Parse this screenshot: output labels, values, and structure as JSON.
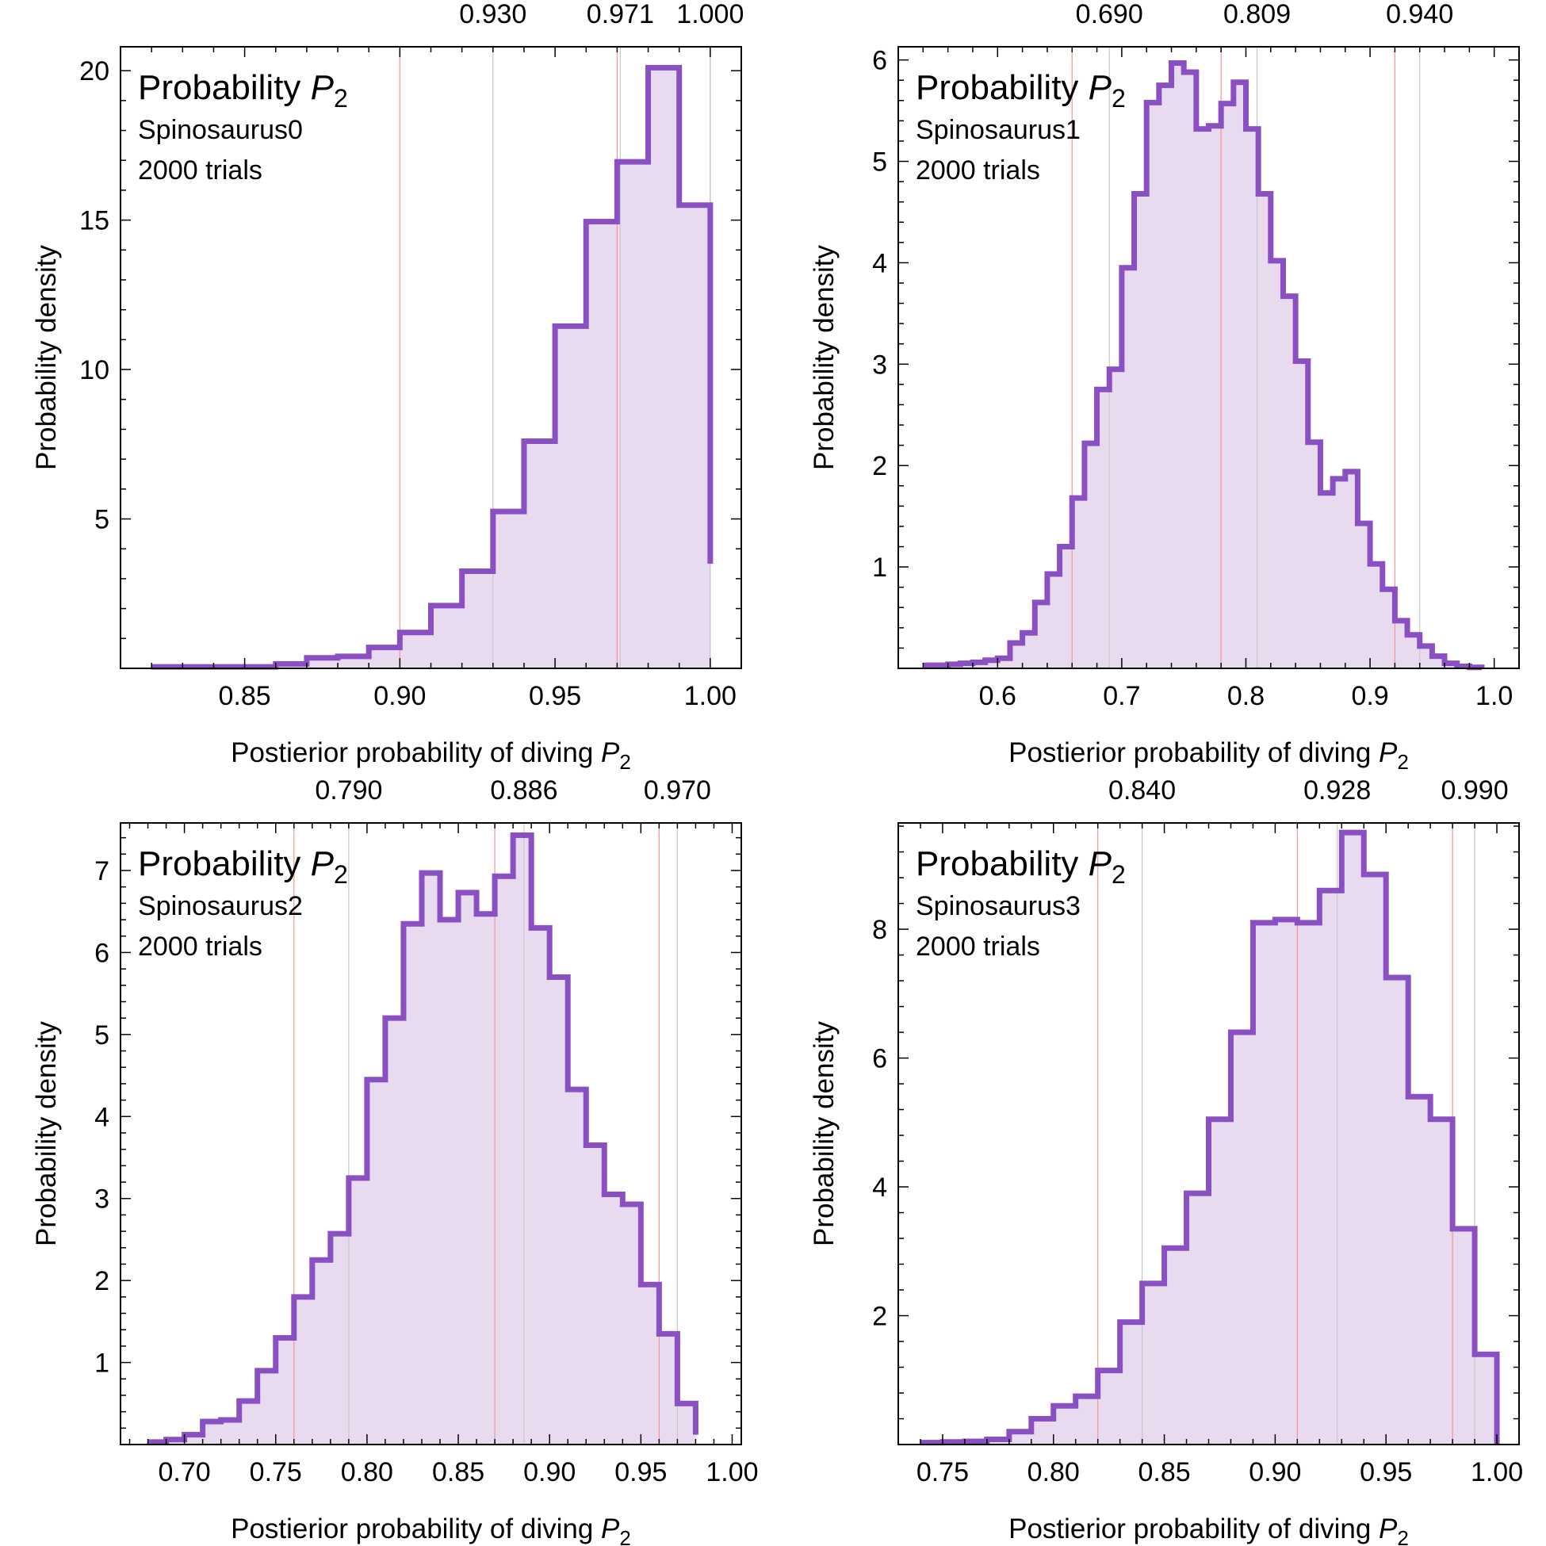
{
  "chart_data": [
    {
      "type": "histogram",
      "title": "Probability",
      "title_var": "P",
      "title_sub": "2",
      "subtitle": "Spinosaurus0",
      "trials_label": "2000 trials",
      "ylabel": "Probability density",
      "xlabel": "Postierior probability of diving",
      "xlabel_var": "P",
      "xlabel_sub": "2",
      "xlim": [
        0.81,
        1.01
      ],
      "ylim": [
        0,
        20.8
      ],
      "xticks": [
        0.85,
        0.9,
        0.95,
        1.0
      ],
      "xtick_labels": [
        "0.85",
        "0.90",
        "0.95",
        "1.00"
      ],
      "yticks": [
        5,
        10,
        15,
        20
      ],
      "ytick_labels": [
        "5",
        "10",
        "15",
        "20"
      ],
      "bin_start": 0.82,
      "bin_width": 0.01,
      "values": [
        0.05,
        0.05,
        0.05,
        0.05,
        0.15,
        0.35,
        0.4,
        0.7,
        1.2,
        2.1,
        3.25,
        5.25,
        7.6,
        11.45,
        14.95,
        16.95,
        20.1,
        15.5
      ],
      "last_edge_value": 3.5,
      "top_markers": [
        0.93,
        0.971,
        1.0
      ],
      "top_marker_labels": [
        "0.930",
        "0.971",
        "1.000"
      ],
      "red_lines": [
        0.9,
        0.97,
        1.0
      ],
      "colors": {
        "line": "#8a4fc2",
        "fill": "#e8dbef",
        "red": "#f49494",
        "gray": "#c8c8c8"
      }
    },
    {
      "type": "histogram",
      "title": "Probability",
      "title_var": "P",
      "title_sub": "2",
      "subtitle": "Spinosaurus1",
      "trials_label": "2000 trials",
      "ylabel": "Probability density",
      "xlabel": "Postierior probability of diving",
      "xlabel_var": "P",
      "xlabel_sub": "2",
      "xlim": [
        0.52,
        1.02
      ],
      "ylim": [
        0,
        6.13
      ],
      "xticks": [
        0.6,
        0.7,
        0.8,
        0.9,
        1.0
      ],
      "xtick_labels": [
        "0.6",
        "0.7",
        "0.8",
        "0.9",
        "1.0"
      ],
      "yticks": [
        1,
        2,
        3,
        4,
        5,
        6
      ],
      "ytick_labels": [
        "1",
        "2",
        "3",
        "4",
        "5",
        "6"
      ],
      "bin_start": 0.54,
      "bin_width": 0.01,
      "values": [
        0.03,
        0.03,
        0.04,
        0.05,
        0.06,
        0.08,
        0.1,
        0.25,
        0.35,
        0.65,
        0.93,
        1.2,
        1.68,
        2.22,
        2.75,
        2.95,
        3.95,
        4.68,
        5.58,
        5.75,
        5.97,
        5.88,
        5.32,
        5.35,
        5.57,
        5.78,
        5.32,
        4.68,
        4.02,
        3.67,
        3.03,
        2.23,
        1.73,
        1.87,
        1.94,
        1.43,
        1.03,
        0.78,
        0.47,
        0.33,
        0.22,
        0.12,
        0.05,
        0.02,
        0.01
      ],
      "top_markers": [
        0.69,
        0.809,
        0.94
      ],
      "top_marker_labels": [
        "0.690",
        "0.809",
        "0.940"
      ],
      "red_lines": [
        0.66,
        0.78,
        0.92
      ],
      "colors": {
        "line": "#8a4fc2",
        "fill": "#e8dbef",
        "red": "#f49494",
        "gray": "#c8c8c8"
      }
    },
    {
      "type": "histogram",
      "title": "Probability",
      "title_var": "P",
      "title_sub": "2",
      "subtitle": "Spinosaurus2",
      "trials_label": "2000 trials",
      "ylabel": "Probability density",
      "xlabel": "Postierior probability of diving",
      "xlabel_var": "P",
      "xlabel_sub": "2",
      "xlim": [
        0.665,
        1.005
      ],
      "ylim": [
        0,
        7.58
      ],
      "xticks": [
        0.7,
        0.75,
        0.8,
        0.85,
        0.9,
        0.95,
        1.0
      ],
      "xtick_labels": [
        "0.70",
        "0.75",
        "0.80",
        "0.85",
        "0.90",
        "0.95",
        "1.00"
      ],
      "yticks": [
        1,
        2,
        3,
        4,
        5,
        6,
        7
      ],
      "ytick_labels": [
        "1",
        "2",
        "3",
        "4",
        "5",
        "6",
        "7"
      ],
      "bin_start": 0.68,
      "bin_width": 0.01,
      "values": [
        0.03,
        0.06,
        0.12,
        0.28,
        0.3,
        0.53,
        0.9,
        1.3,
        1.8,
        2.25,
        2.57,
        3.25,
        4.45,
        5.2,
        6.35,
        6.97,
        6.4,
        6.73,
        6.47,
        6.93,
        7.43,
        6.3,
        5.7,
        4.33,
        3.65,
        3.05,
        2.93,
        1.95,
        1.35,
        0.5
      ],
      "last_edge_value": 0.12,
      "top_markers": [
        0.79,
        0.886,
        0.97
      ],
      "top_marker_labels": [
        "0.790",
        "0.886",
        "0.970"
      ],
      "red_lines": [
        0.76,
        0.87,
        0.96
      ],
      "colors": {
        "line": "#8a4fc2",
        "fill": "#e8dbef",
        "red": "#f49494",
        "gray": "#c8c8c8"
      }
    },
    {
      "type": "histogram",
      "title": "Probability",
      "title_var": "P",
      "title_sub": "2",
      "subtitle": "Spinosaurus3",
      "trials_label": "2000 trials",
      "ylabel": "Probability density",
      "xlabel": "Postierior probability of diving",
      "xlabel_var": "P",
      "xlabel_sub": "2",
      "xlim": [
        0.73,
        1.01
      ],
      "ylim": [
        0,
        9.65
      ],
      "xticks": [
        0.75,
        0.8,
        0.85,
        0.9,
        0.95,
        1.0
      ],
      "xtick_labels": [
        "0.75",
        "0.80",
        "0.85",
        "0.90",
        "0.95",
        "1.00"
      ],
      "yticks": [
        2,
        4,
        6,
        8
      ],
      "ytick_labels": [
        "2",
        "4",
        "6",
        "8"
      ],
      "bin_start": 0.74,
      "bin_width": 0.01,
      "values": [
        0.03,
        0.04,
        0.05,
        0.08,
        0.2,
        0.4,
        0.6,
        0.75,
        1.15,
        1.9,
        2.5,
        3.05,
        3.9,
        5.05,
        6.4,
        8.1,
        8.15,
        8.1,
        8.6,
        9.5,
        8.85,
        7.25,
        5.4,
        5.05,
        3.35,
        1.4
      ],
      "top_markers": [
        0.84,
        0.928,
        0.99
      ],
      "top_marker_labels": [
        "0.840",
        "0.928",
        "0.990"
      ],
      "red_lines": [
        0.82,
        0.91,
        0.98
      ],
      "colors": {
        "line": "#8a4fc2",
        "fill": "#e8dbef",
        "red": "#f49494",
        "gray": "#c8c8c8"
      }
    }
  ]
}
